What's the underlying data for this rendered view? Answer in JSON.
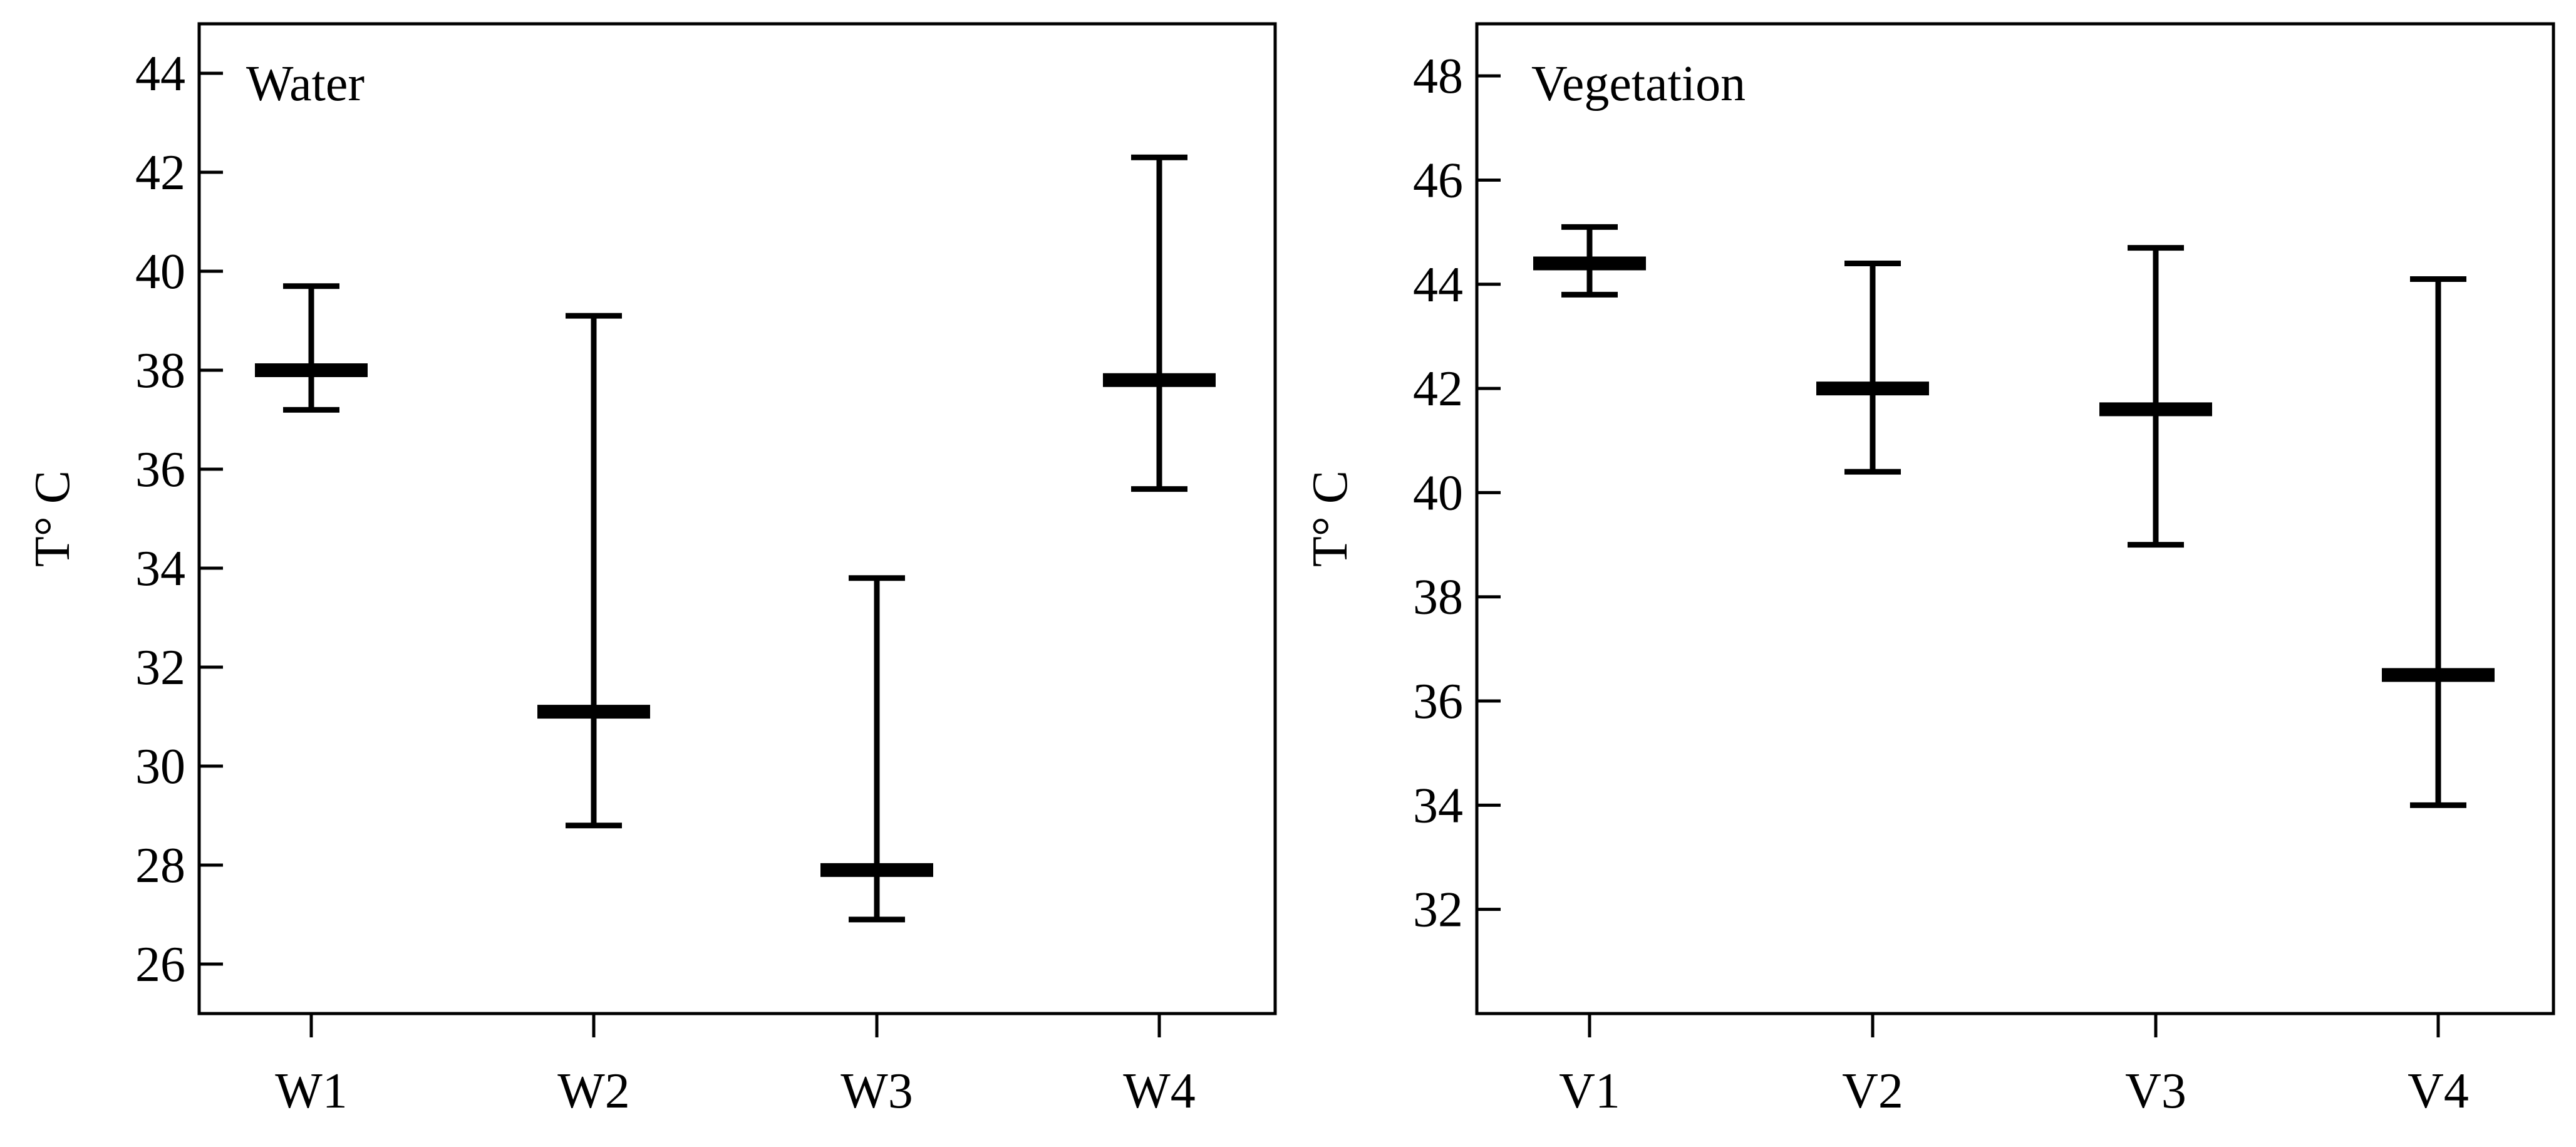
{
  "chart_data": [
    {
      "type": "errorbar",
      "title": "Water",
      "xlabel": "",
      "ylabel": "T° C",
      "ylim": [
        25,
        45
      ],
      "yticks": [
        26,
        28,
        30,
        32,
        34,
        36,
        38,
        40,
        42,
        44
      ],
      "categories": [
        "W1",
        "W2",
        "W3",
        "W4"
      ],
      "points": [
        {
          "label": "W1",
          "mean": 38.0,
          "lower": 37.2,
          "upper": 39.7
        },
        {
          "label": "W2",
          "mean": 31.1,
          "lower": 28.8,
          "upper": 39.1
        },
        {
          "label": "W3",
          "mean": 27.9,
          "lower": 26.9,
          "upper": 33.8
        },
        {
          "label": "W4",
          "mean": 37.8,
          "lower": 35.6,
          "upper": 42.3
        }
      ],
      "grid": false,
      "color": "#000000"
    },
    {
      "type": "errorbar",
      "title": "Vegetation",
      "xlabel": "",
      "ylabel": "T° C",
      "ylim": [
        30,
        49
      ],
      "yticks": [
        32,
        34,
        36,
        38,
        40,
        42,
        44,
        46,
        48
      ],
      "categories": [
        "V1",
        "V2",
        "V3",
        "V4"
      ],
      "points": [
        {
          "label": "V1",
          "mean": 44.4,
          "lower": 43.8,
          "upper": 45.1
        },
        {
          "label": "V2",
          "mean": 42.0,
          "lower": 40.4,
          "upper": 44.4
        },
        {
          "label": "V3",
          "mean": 41.6,
          "lower": 39.0,
          "upper": 44.7
        },
        {
          "label": "V4",
          "mean": 36.5,
          "lower": 34.0,
          "upper": 44.1
        }
      ],
      "grid": false,
      "color": "#000000"
    }
  ]
}
